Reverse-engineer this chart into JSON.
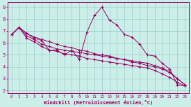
{
  "bg_color": "#cceee8",
  "line_color": "#990066",
  "grid_color": "#99cccc",
  "xlabel": "Windchill (Refroidissement éolien,°C)",
  "xlim": [
    -0.5,
    23.5
  ],
  "ylim": [
    1.8,
    9.4
  ],
  "xticks": [
    0,
    1,
    2,
    3,
    4,
    5,
    6,
    7,
    8,
    9,
    10,
    11,
    12,
    13,
    14,
    15,
    16,
    17,
    18,
    19,
    20,
    21,
    22,
    23
  ],
  "yticks": [
    2,
    3,
    4,
    5,
    6,
    7,
    8,
    9
  ],
  "line1": {
    "x": [
      0,
      1,
      2,
      3,
      4,
      5,
      6,
      7,
      8,
      9,
      10,
      11,
      12,
      13,
      14,
      15,
      16,
      17,
      18,
      19,
      20,
      21,
      22,
      23
    ],
    "y": [
      6.7,
      7.3,
      6.8,
      6.4,
      6.2,
      5.4,
      5.4,
      5.0,
      5.4,
      4.6,
      6.9,
      8.3,
      9.0,
      7.9,
      7.5,
      6.7,
      6.5,
      5.9,
      5.0,
      4.9,
      4.3,
      3.8,
      2.5,
      2.4
    ]
  },
  "line2": {
    "x": [
      0,
      1,
      2,
      3,
      4,
      5,
      6,
      7,
      8,
      9,
      10,
      11,
      12,
      13,
      14,
      15,
      16,
      17,
      18,
      19,
      20,
      21,
      22,
      23
    ],
    "y": [
      6.7,
      7.3,
      6.8,
      6.5,
      6.3,
      6.1,
      5.9,
      5.7,
      5.6,
      5.4,
      5.3,
      5.1,
      5.0,
      4.9,
      4.7,
      4.6,
      4.4,
      4.3,
      4.1,
      4.0,
      3.8,
      3.5,
      3.0,
      2.5
    ]
  },
  "line3": {
    "x": [
      0,
      1,
      2,
      3,
      4,
      5,
      6,
      7,
      8,
      9,
      10,
      11,
      12,
      13,
      14,
      15,
      16,
      17,
      18,
      19,
      20,
      21,
      22,
      23
    ],
    "y": [
      6.7,
      7.3,
      6.6,
      6.3,
      5.9,
      5.7,
      5.5,
      5.4,
      5.3,
      5.2,
      5.1,
      5.0,
      4.9,
      4.8,
      4.7,
      4.6,
      4.5,
      4.4,
      4.3,
      4.1,
      3.9,
      3.6,
      3.0,
      2.5
    ]
  },
  "line4": {
    "x": [
      0,
      1,
      2,
      3,
      4,
      5,
      6,
      7,
      8,
      9,
      10,
      11,
      12,
      13,
      14,
      15,
      16,
      17,
      18,
      19,
      20,
      21,
      22,
      23
    ],
    "y": [
      6.7,
      7.3,
      6.4,
      6.1,
      5.7,
      5.4,
      5.3,
      5.1,
      5.0,
      4.9,
      4.7,
      4.6,
      4.5,
      4.4,
      4.3,
      4.2,
      4.1,
      4.0,
      3.9,
      3.7,
      3.4,
      3.1,
      2.7,
      2.4
    ]
  }
}
